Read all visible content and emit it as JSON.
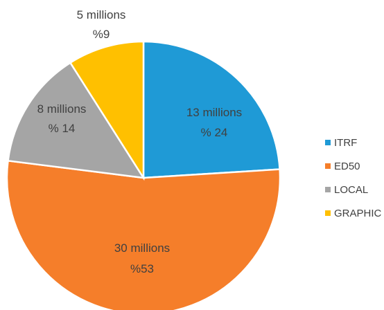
{
  "chart_data": {
    "type": "pie",
    "title": "",
    "slices": [
      {
        "name": "ITRF",
        "value": 13,
        "percent": 24,
        "label_value": "13 millions",
        "label_percent": "% 24",
        "color": "#1f9ad6"
      },
      {
        "name": "ED50",
        "value": 30,
        "percent": 53,
        "label_value": "30 millions",
        "label_percent": "%53",
        "color": "#f57e2a"
      },
      {
        "name": "LOCAL",
        "value": 8,
        "percent": 14,
        "label_value": "8 millions",
        "label_percent": "% 14",
        "color": "#a5a5a5"
      },
      {
        "name": "GRAPHIC",
        "value": 5,
        "percent": 9,
        "label_value": "5 millions",
        "label_percent": "%9",
        "color": "#ffc000"
      }
    ],
    "legend_position": "right"
  }
}
